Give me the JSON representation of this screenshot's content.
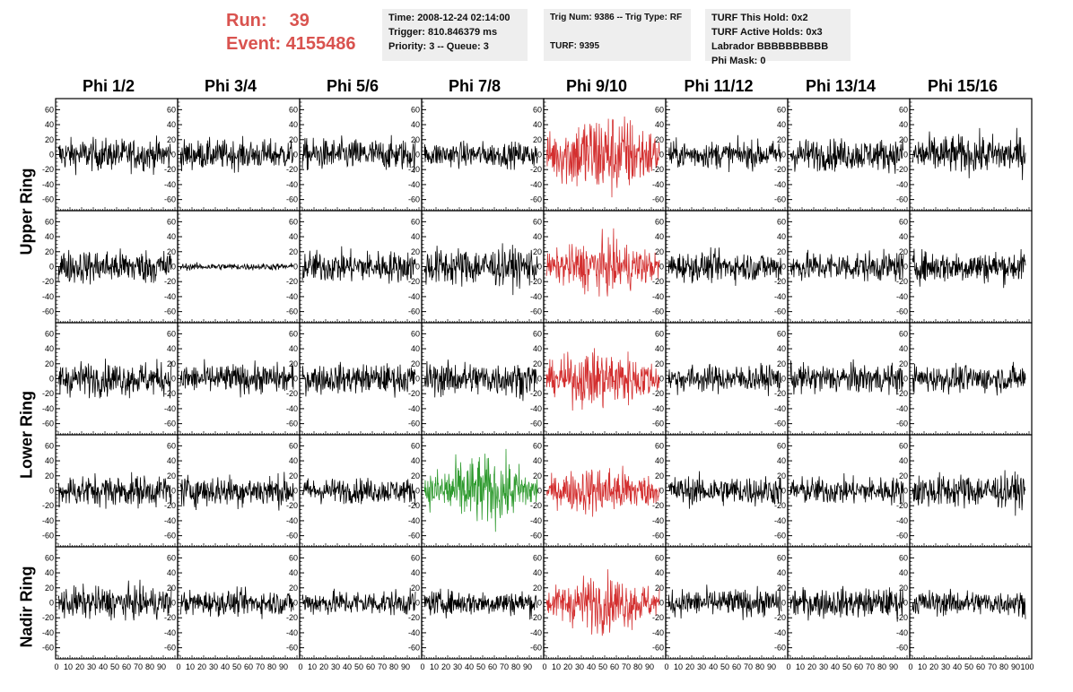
{
  "run": {
    "run_label": "Run:",
    "run_value": "39",
    "event_label": "Event:",
    "event_value": "4155486"
  },
  "info_time": {
    "line1": "Time: 2008-12-24 02:14:00",
    "line2": "Trigger: 810.846379 ms",
    "line3": "Priority: 3 -- Queue: 3"
  },
  "info_trig": {
    "line1": "Trig Num: 9386 -- Trig Type: RF",
    "line2": "TURF: 9395"
  },
  "info_turf": {
    "line1": "TURF This Hold: 0x2",
    "line2": "TURF Active Holds: 0x3",
    "line3": "Labrador BBBBBBBBBB",
    "line4": "Phi Mask: 0"
  },
  "columns": [
    "Phi 1/2",
    "Phi 3/4",
    "Phi 5/6",
    "Phi 7/8",
    "Phi 9/10",
    "Phi 11/12",
    "Phi 13/14",
    "Phi 15/16"
  ],
  "ring_labels": [
    "Upper Ring",
    "Lower Ring",
    "Nadir Ring"
  ],
  "colors": {
    "default": "#000000",
    "highlight_red": "#d32f2f",
    "highlight_green": "#2e9a2e",
    "run_text": "#d9534f",
    "info_bg": "#eeeeee"
  },
  "chart_data": {
    "type": "line",
    "y_ticks": [
      "60",
      "40",
      "20",
      "0",
      "-20",
      "-40",
      "-60"
    ],
    "x_tick_text": [
      "0",
      "10",
      "20",
      "30",
      "40",
      "50",
      "60",
      "70",
      "80",
      "90",
      "100"
    ],
    "ylim": [
      -70,
      70
    ],
    "xlim": [
      0,
      100
    ],
    "panel_rows": 5,
    "panel_cols": 8,
    "panel_styles": [
      [
        "black",
        "black",
        "black",
        "black",
        "red",
        "black",
        "black",
        "black"
      ],
      [
        "black",
        "black",
        "black",
        "black",
        "red",
        "black",
        "black",
        "black"
      ],
      [
        "black",
        "black",
        "black",
        "black",
        "red",
        "black",
        "black",
        "black"
      ],
      [
        "black",
        "black",
        "black",
        "green",
        "red",
        "black",
        "black",
        "black"
      ],
      [
        "black",
        "black",
        "black",
        "black",
        "red",
        "black",
        "black",
        "black"
      ]
    ],
    "panel_amplitudes": [
      [
        14,
        13,
        14,
        11,
        28,
        12,
        14,
        17
      ],
      [
        15,
        3,
        14,
        17,
        17,
        13,
        13,
        14
      ],
      [
        15,
        13,
        13,
        15,
        19,
        12,
        13,
        12
      ],
      [
        14,
        14,
        11,
        22,
        16,
        13,
        12,
        15
      ],
      [
        14,
        11,
        11,
        11,
        18,
        12,
        13,
        11
      ]
    ]
  }
}
